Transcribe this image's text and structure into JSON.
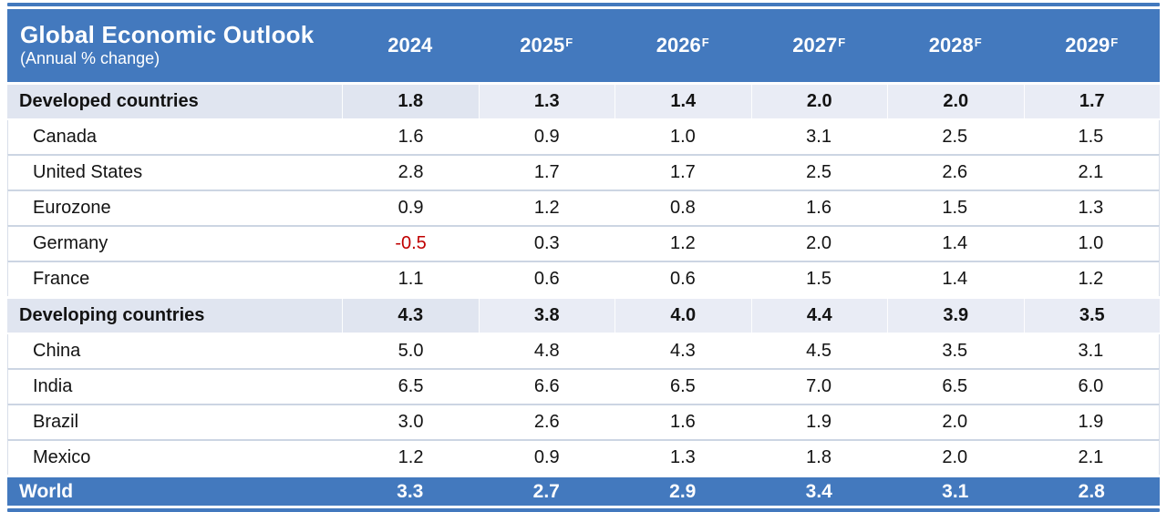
{
  "chart_data": {
    "type": "table",
    "title": "Global Economic Outlook",
    "subtitle": "(Annual % change)",
    "forecast_marker": "F",
    "columns": [
      {
        "label": "2024",
        "forecast": false
      },
      {
        "label": "2025",
        "forecast": true
      },
      {
        "label": "2026",
        "forecast": true
      },
      {
        "label": "2027",
        "forecast": true
      },
      {
        "label": "2028",
        "forecast": true
      },
      {
        "label": "2029",
        "forecast": true
      }
    ],
    "rows": [
      {
        "label": "Developed countries",
        "style": "section",
        "values": [
          "1.8",
          "1.3",
          "1.4",
          "2.0",
          "2.0",
          "1.7"
        ]
      },
      {
        "label": "Canada",
        "style": "item",
        "values": [
          "1.6",
          "0.9",
          "1.0",
          "3.1",
          "2.5",
          "1.5"
        ]
      },
      {
        "label": "United States",
        "style": "item",
        "values": [
          "2.8",
          "1.7",
          "1.7",
          "2.5",
          "2.6",
          "2.1"
        ]
      },
      {
        "label": "Eurozone",
        "style": "item",
        "values": [
          "0.9",
          "1.2",
          "0.8",
          "1.6",
          "1.5",
          "1.3"
        ]
      },
      {
        "label": "Germany",
        "style": "item",
        "values": [
          "-0.5",
          "0.3",
          "1.2",
          "2.0",
          "1.4",
          "1.0"
        ]
      },
      {
        "label": "France",
        "style": "item",
        "values": [
          "1.1",
          "0.6",
          "0.6",
          "1.5",
          "1.4",
          "1.2"
        ]
      },
      {
        "label": "Developing countries",
        "style": "section",
        "values": [
          "4.3",
          "3.8",
          "4.0",
          "4.4",
          "3.9",
          "3.5"
        ]
      },
      {
        "label": "China",
        "style": "item",
        "values": [
          "5.0",
          "4.8",
          "4.3",
          "4.5",
          "3.5",
          "3.1"
        ]
      },
      {
        "label": "India",
        "style": "item",
        "values": [
          "6.5",
          "6.6",
          "6.5",
          "7.0",
          "6.5",
          "6.0"
        ]
      },
      {
        "label": "Brazil",
        "style": "item",
        "values": [
          "3.0",
          "2.6",
          "1.6",
          "1.9",
          "2.0",
          "1.9"
        ]
      },
      {
        "label": "Mexico",
        "style": "item",
        "values": [
          "1.2",
          "0.9",
          "1.3",
          "1.8",
          "2.0",
          "2.1"
        ]
      },
      {
        "label": "World",
        "style": "total",
        "values": [
          "3.3",
          "2.7",
          "2.9",
          "3.4",
          "3.1",
          "2.8"
        ]
      }
    ],
    "colors": {
      "header_blue": "#4379be",
      "section_band_dark": "#e0e5f0",
      "section_band_light": "#e9ecf5",
      "row_separator": "#ccd5e3",
      "negative_value": "#c00000"
    },
    "layout_hints": {
      "grid": "horizontal separators between item rows",
      "legend_position": "none"
    }
  }
}
